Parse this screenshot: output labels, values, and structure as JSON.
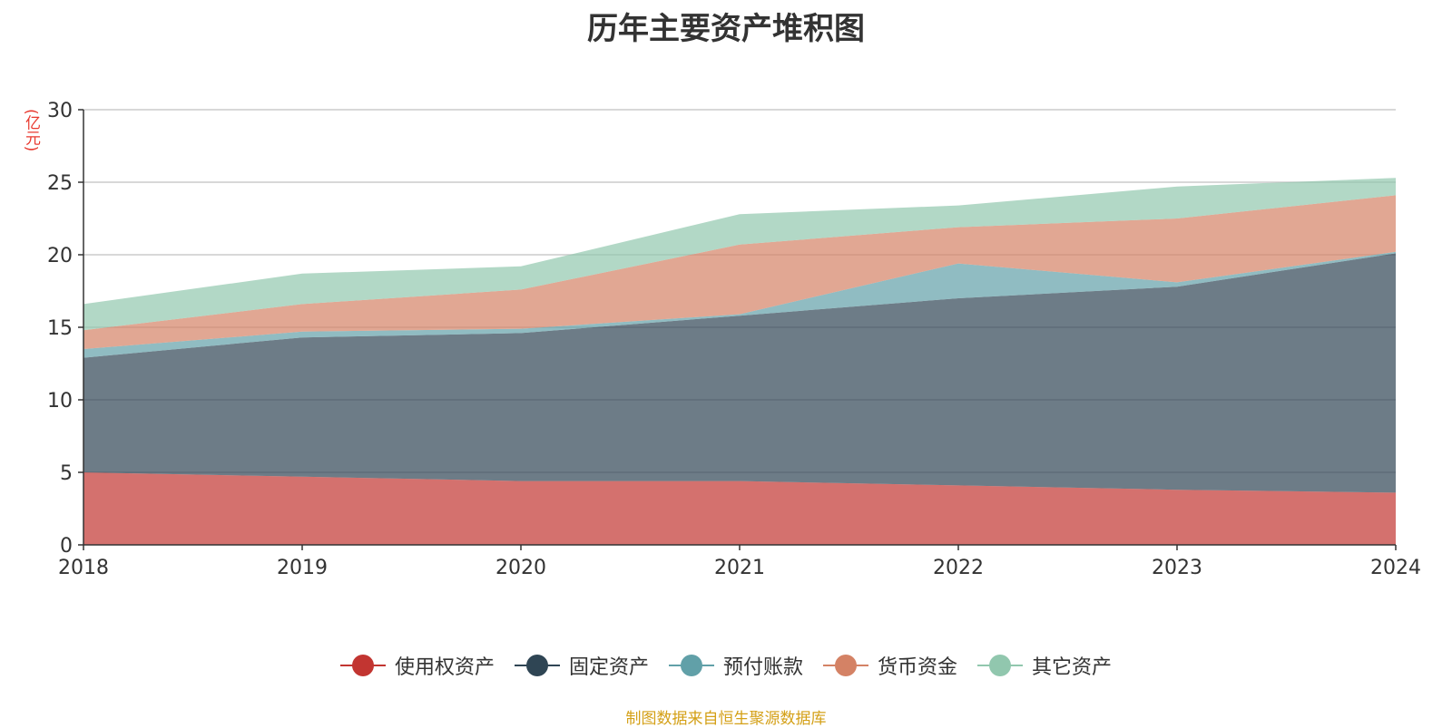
{
  "chart_data": {
    "type": "area",
    "stacked": true,
    "title": "历年主要资产堆积图",
    "unit_label": "(亿元)",
    "x": [
      "2018",
      "2019",
      "2020",
      "2021",
      "2022",
      "2023",
      "2024"
    ],
    "ylim": [
      0,
      30
    ],
    "yticks": [
      "0",
      "5",
      "10",
      "15",
      "20",
      "25",
      "30"
    ],
    "grid": true,
    "legend_position": "bottom",
    "series": [
      {
        "name": "使用权资产",
        "values": [
          5.0,
          4.7,
          4.4,
          4.4,
          4.1,
          3.8,
          3.6
        ],
        "color": "#c23531"
      },
      {
        "name": "固定资产",
        "values": [
          7.9,
          9.6,
          10.2,
          11.4,
          12.9,
          14.0,
          16.5
        ],
        "color": "#2f4554"
      },
      {
        "name": "预付账款",
        "values": [
          0.6,
          0.4,
          0.3,
          0.1,
          2.4,
          0.3,
          0.1
        ],
        "color": "#61a0a8"
      },
      {
        "name": "货币资金",
        "values": [
          1.3,
          1.9,
          2.7,
          4.8,
          2.5,
          4.4,
          3.9
        ],
        "color": "#d48265"
      },
      {
        "name": "其它资产",
        "values": [
          1.8,
          2.1,
          1.6,
          2.1,
          1.5,
          2.2,
          1.2
        ],
        "color": "#91c7ae"
      }
    ]
  },
  "footer": {
    "source": "制图数据来自恒生聚源数据库"
  }
}
